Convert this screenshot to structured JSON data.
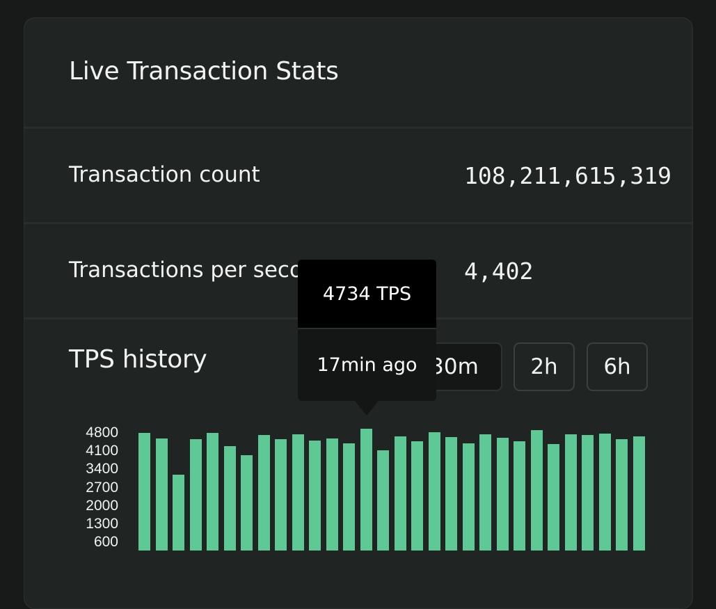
{
  "card": {
    "title": "Live Transaction Stats"
  },
  "stats": [
    {
      "label": "Transaction count",
      "value": "108,211,615,319"
    },
    {
      "label": "Transactions per second",
      "value": "4,402"
    }
  ],
  "history": {
    "title": "TPS history",
    "ranges": [
      {
        "label": "30m",
        "active": true
      },
      {
        "label": "2h",
        "active": false
      },
      {
        "label": "6h",
        "active": false
      }
    ]
  },
  "tooltip": {
    "value": "4734 TPS",
    "time": "17min ago"
  },
  "colors": {
    "bar": "#5ec995",
    "card_background": "#202423",
    "page_background": "#171a19"
  },
  "chart_data": {
    "type": "bar",
    "title": "",
    "xlabel": "",
    "ylabel": "",
    "y_ticks": [
      "4800",
      "4100",
      "3400",
      "2700",
      "2000",
      "1300",
      "600"
    ],
    "ylim": [
      0,
      4800
    ],
    "grid": false,
    "legend": "none",
    "values": [
      4580,
      4360,
      2950,
      4350,
      4590,
      4070,
      3720,
      4500,
      4340,
      4520,
      4290,
      4360,
      4180,
      4734,
      3900,
      4460,
      4270,
      4600,
      4420,
      4180,
      4520,
      4400,
      4260,
      4680,
      4140,
      4540,
      4500,
      4550,
      4330,
      4450
    ],
    "highlight_index": 13
  }
}
